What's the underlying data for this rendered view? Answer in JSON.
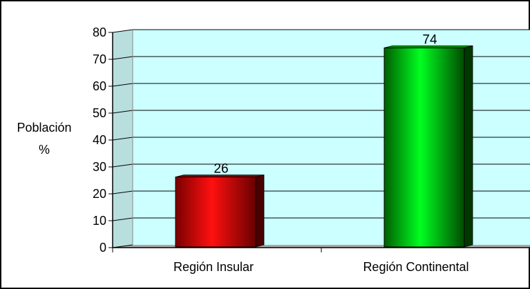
{
  "chart_data": {
    "type": "bar",
    "categories": [
      "Región Insular",
      "Región Continental"
    ],
    "values": [
      26,
      74
    ],
    "data_labels": [
      "26",
      "74"
    ],
    "title": "",
    "xlabel": "",
    "ylabel": [
      "Población",
      "%"
    ],
    "ylim": [
      0,
      80
    ],
    "yticks": [
      "0",
      "10",
      "20",
      "30",
      "40",
      "50",
      "60",
      "70",
      "80"
    ],
    "grid": true,
    "legend": "none",
    "colors": {
      "plot_background": "#ccffff",
      "floor": "#c0c0c0",
      "bar_insular": "#ff0000",
      "bar_continental": "#00ff00",
      "gridline": "#000000"
    }
  }
}
